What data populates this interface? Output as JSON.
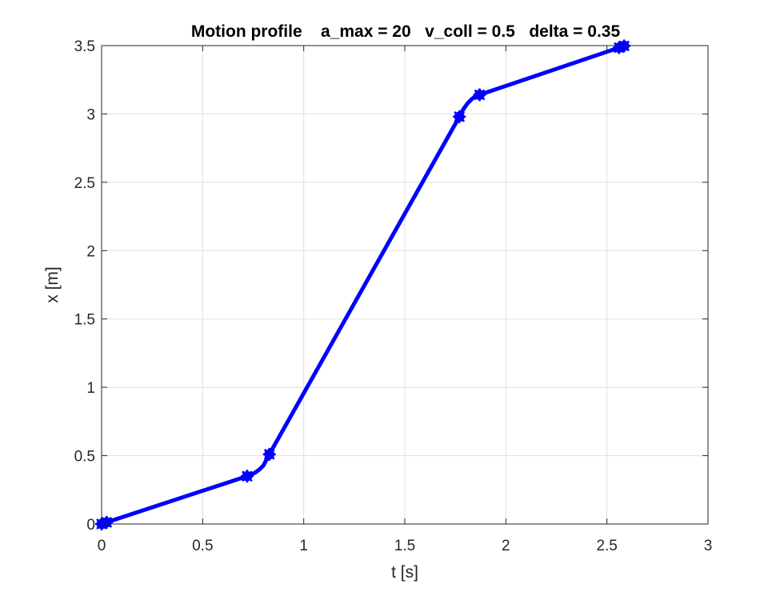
{
  "chart_data": {
    "type": "line",
    "title": "Motion profile    a_max = 20   v_coll = 0.5   delta = 0.35",
    "xlabel": "t [s]",
    "ylabel": "x [m]",
    "xlim": [
      0,
      3
    ],
    "ylim": [
      0,
      3.5
    ],
    "xticks": [
      0,
      0.5,
      1,
      1.5,
      2,
      2.5,
      3
    ],
    "yticks": [
      0,
      0.5,
      1,
      1.5,
      2,
      2.5,
      3,
      3.5
    ],
    "xtick_labels": [
      "0",
      "0.5",
      "1",
      "1.5",
      "2",
      "2.5",
      "3"
    ],
    "ytick_labels": [
      "0",
      "0.5",
      "1",
      "1.5",
      "2",
      "2.5",
      "3",
      "3.5"
    ],
    "grid": true,
    "series": [
      {
        "color": "#0000ff",
        "x": [
          0,
          0.025,
          0.72,
          0.74,
          0.76,
          0.78,
          0.8,
          0.83,
          1.77,
          1.79,
          1.81,
          1.83,
          1.85,
          1.87,
          2.56,
          2.585
        ],
        "y": [
          0,
          0.0125,
          0.35,
          0.361,
          0.376,
          0.398,
          0.427,
          0.51,
          2.98,
          3.035,
          3.077,
          3.107,
          3.13,
          3.14,
          3.485,
          3.4975
        ]
      }
    ],
    "markers": {
      "color": "#0000ff",
      "x": [
        0,
        0.025,
        0.72,
        0.83,
        1.77,
        1.87,
        2.56,
        2.585
      ],
      "y": [
        0,
        0.0125,
        0.35,
        0.51,
        2.98,
        3.14,
        3.485,
        3.4975
      ]
    }
  }
}
